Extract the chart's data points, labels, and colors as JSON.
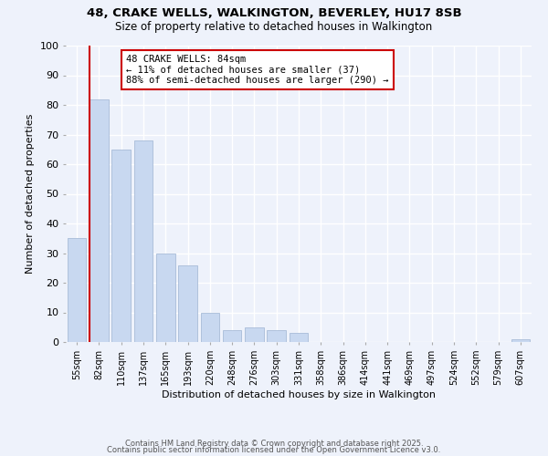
{
  "title": "48, CRAKE WELLS, WALKINGTON, BEVERLEY, HU17 8SB",
  "subtitle": "Size of property relative to detached houses in Walkington",
  "xlabel": "Distribution of detached houses by size in Walkington",
  "ylabel": "Number of detached properties",
  "bar_color": "#c8d8f0",
  "bar_edge_color": "#a8bcd8",
  "categories": [
    "55sqm",
    "82sqm",
    "110sqm",
    "137sqm",
    "165sqm",
    "193sqm",
    "220sqm",
    "248sqm",
    "276sqm",
    "303sqm",
    "331sqm",
    "358sqm",
    "386sqm",
    "414sqm",
    "441sqm",
    "469sqm",
    "497sqm",
    "524sqm",
    "552sqm",
    "579sqm",
    "607sqm"
  ],
  "values": [
    35,
    82,
    65,
    68,
    30,
    26,
    10,
    4,
    5,
    4,
    3,
    0,
    0,
    0,
    0,
    0,
    0,
    0,
    0,
    0,
    1
  ],
  "redline_index": 1,
  "annotation_line1": "48 CRAKE WELLS: 84sqm",
  "annotation_line2": "← 11% of detached houses are smaller (37)",
  "annotation_line3": "88% of semi-detached houses are larger (290) →",
  "annotation_box_color": "#ffffff",
  "annotation_border_color": "#cc0000",
  "ylim": [
    0,
    100
  ],
  "yticks": [
    0,
    10,
    20,
    30,
    40,
    50,
    60,
    70,
    80,
    90,
    100
  ],
  "footer1": "Contains HM Land Registry data © Crown copyright and database right 2025.",
  "footer2": "Contains public sector information licensed under the Open Government Licence v3.0.",
  "background_color": "#eef2fb",
  "grid_color": "#ffffff",
  "title_fontsize": 9.5,
  "subtitle_fontsize": 8.5
}
